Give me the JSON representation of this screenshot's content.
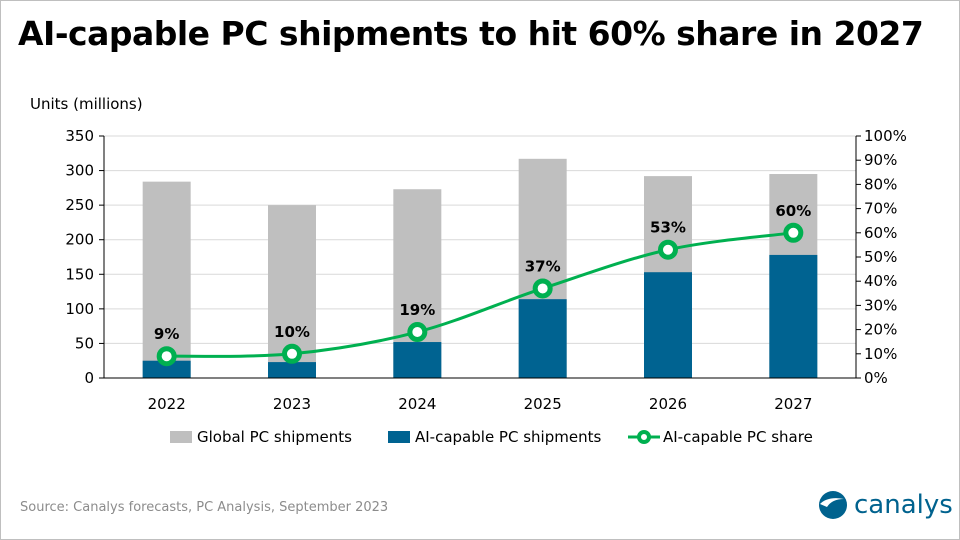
{
  "chart_data": {
    "type": "bar",
    "title": "AI-capable PC shipments to hit 60% share in 2027",
    "ylabel": "Units (millions)",
    "categories": [
      "2022",
      "2023",
      "2024",
      "2025",
      "2026",
      "2027"
    ],
    "ylim": [
      0,
      350
    ],
    "yticks": [
      "0",
      "50",
      "100",
      "150",
      "200",
      "250",
      "300",
      "350"
    ],
    "y2lim": [
      0,
      100
    ],
    "y2ticks": [
      "0%",
      "10%",
      "20%",
      "30%",
      "40%",
      "50%",
      "60%",
      "70%",
      "80%",
      "90%",
      "100%"
    ],
    "grid": true,
    "legend_placement": "bottom",
    "series": [
      {
        "name": "Global PC shipments",
        "type": "bar",
        "color": "#bfbfbf",
        "values": [
          284,
          250,
          273,
          317,
          292,
          295
        ]
      },
      {
        "name": "AI-capable PC shipments",
        "type": "bar",
        "color": "#006391",
        "values": [
          25,
          23,
          52,
          114,
          153,
          178
        ]
      },
      {
        "name": "AI-capable PC share",
        "type": "line",
        "axis": "right",
        "color": "#00b050",
        "values": [
          9,
          10,
          19,
          37,
          53,
          60
        ],
        "labels": [
          "9%",
          "10%",
          "19%",
          "37%",
          "53%",
          "60%"
        ]
      }
    ]
  },
  "source": "Source:  Canalys forecasts, PC Analysis, September 2023",
  "logo": {
    "text": "canalys",
    "color": "#00628e"
  }
}
